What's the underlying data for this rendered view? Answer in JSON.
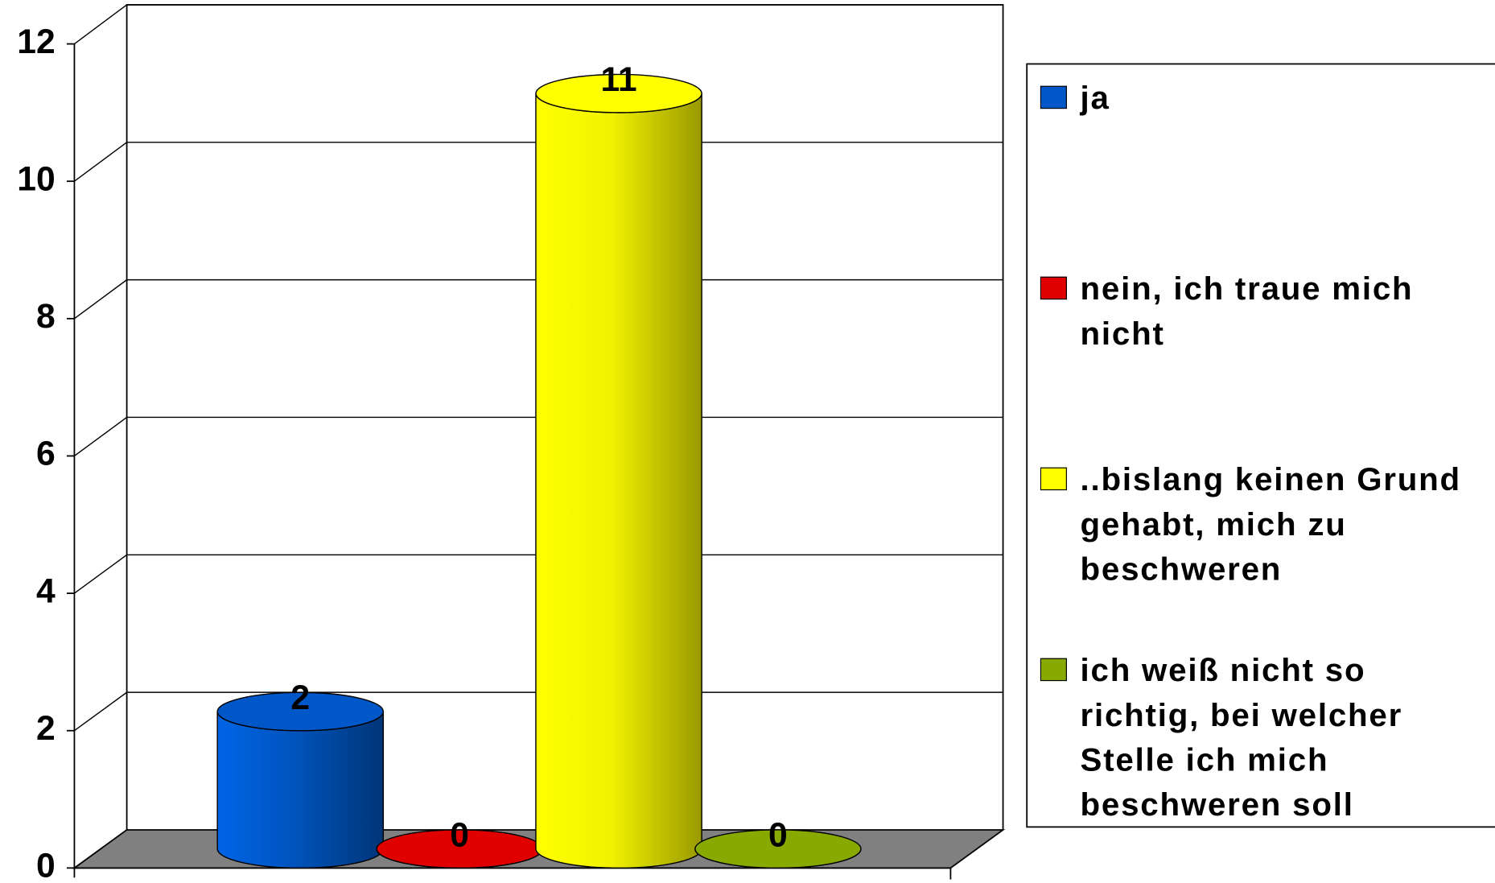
{
  "chart_data": {
    "type": "bar",
    "series": [
      {
        "name": "ja",
        "color": "#0058c8",
        "values": [
          2
        ]
      },
      {
        "name": "nein, ich traue mich nicht",
        "color": "#e00000",
        "values": [
          0
        ]
      },
      {
        "name": "..bislang keinen Grund gehabt, mich zu beschweren",
        "color": "#ffff00",
        "values": [
          11
        ]
      },
      {
        "name": "ich weiß nicht so richtig, bei welcher Stelle ich mich beschweren soll",
        "color": "#88aa00",
        "values": [
          0
        ]
      }
    ],
    "ylim": [
      0,
      12
    ],
    "yticks": [
      0,
      2,
      4,
      6,
      8,
      10,
      12
    ],
    "grid": true
  }
}
